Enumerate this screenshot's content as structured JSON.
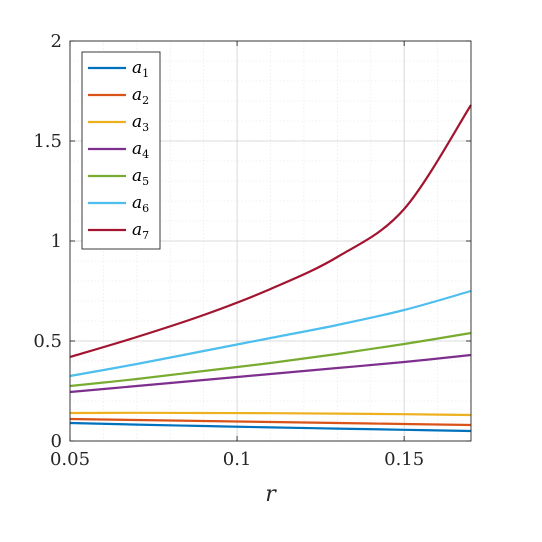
{
  "chart_data": {
    "type": "line",
    "title": "",
    "xlabel": "r",
    "ylabel": "",
    "xlim": [
      0.05,
      0.17
    ],
    "ylim": [
      0,
      2
    ],
    "xticks": [
      0.05,
      0.1,
      0.15
    ],
    "xtick_labels": [
      "0.05",
      "0.1",
      "0.15"
    ],
    "yticks": [
      0,
      0.5,
      1,
      1.5,
      2
    ],
    "ytick_labels": [
      "0",
      "0.5",
      "1",
      "1.5",
      "2"
    ],
    "grid": true,
    "minor_grid": true,
    "legend_position": "top-left",
    "x": [
      0.05,
      0.07,
      0.09,
      0.11,
      0.13,
      0.15,
      0.17
    ],
    "series": [
      {
        "name": "a1",
        "base": "a",
        "sub": "1",
        "color": "#0072BD",
        "values": [
          0.09,
          0.082,
          0.075,
          0.068,
          0.062,
          0.056,
          0.05
        ]
      },
      {
        "name": "a2",
        "base": "a",
        "sub": "2",
        "color": "#D95319",
        "values": [
          0.11,
          0.105,
          0.1,
          0.095,
          0.09,
          0.085,
          0.08
        ]
      },
      {
        "name": "a3",
        "base": "a",
        "sub": "3",
        "color": "#EDB120",
        "values": [
          0.14,
          0.141,
          0.14,
          0.139,
          0.137,
          0.134,
          0.13
        ]
      },
      {
        "name": "a4",
        "base": "a",
        "sub": "4",
        "color": "#7E2F8E",
        "values": [
          0.245,
          0.275,
          0.305,
          0.335,
          0.365,
          0.395,
          0.43
        ]
      },
      {
        "name": "a5",
        "base": "a",
        "sub": "5",
        "color": "#77AC30",
        "values": [
          0.275,
          0.31,
          0.35,
          0.39,
          0.435,
          0.485,
          0.54
        ]
      },
      {
        "name": "a6",
        "base": "a",
        "sub": "6",
        "color": "#4DBEEE",
        "values": [
          0.325,
          0.385,
          0.45,
          0.515,
          0.58,
          0.655,
          0.75
        ]
      },
      {
        "name": "a7",
        "base": "a",
        "sub": "7",
        "color": "#A2142F",
        "values": [
          0.42,
          0.52,
          0.63,
          0.76,
          0.92,
          1.16,
          1.68
        ]
      }
    ]
  }
}
